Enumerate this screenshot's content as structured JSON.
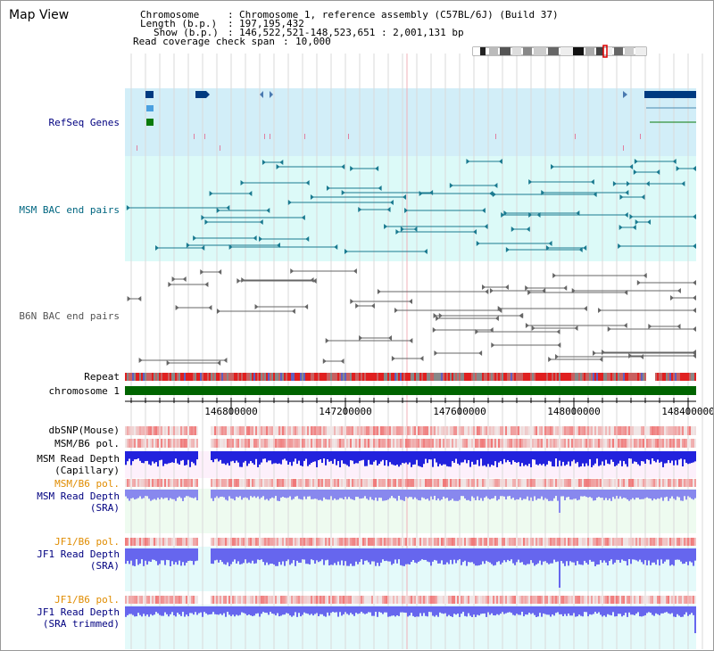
{
  "page": {
    "title": "Map View"
  },
  "header": {
    "chromosome_key": "Chromosome",
    "chromosome_value": "Chromosome 1, reference assembly (C57BL/6J) (Build 37)",
    "length_key": "Length (b.p.)",
    "length_value": "197,195,432",
    "show_key": "Show (b.p.)",
    "show_value": "146,522,521-148,523,651 : 2,001,131 bp",
    "coverage_key": "Read coverage check span",
    "coverage_value": "10,000"
  },
  "tracks": {
    "refseq": "RefSeq Genes",
    "msm_bac": "MSM BAC end pairs",
    "b6n_bac": "B6N BAC end pairs",
    "repeat": "Repeat",
    "chromosome": "chromosome 1",
    "dbsnp": "dbSNP(Mouse)",
    "msm_b6_pol_1": "MSM/B6 pol.",
    "msm_depth_cap_1": "MSM Read Depth",
    "msm_depth_cap_2": "(Capillary)",
    "msm_b6_pol_2": "MSM/B6 pol.",
    "msm_depth_sra_1": "MSM Read Depth",
    "msm_depth_sra_2": "(SRA)",
    "jf1_b6_pol_1": "JF1/B6 pol.",
    "jf1_depth_sra_1": "JF1 Read Depth",
    "jf1_depth_sra_2": "(SRA)",
    "jf1_b6_pol_2": "JF1/B6 pol.",
    "jf1_depth_trim_1": "JF1 Read Depth",
    "jf1_depth_trim_2": "(SRA trimmed)"
  },
  "axis": {
    "ticks": [
      "146800000",
      "147200000",
      "147600000",
      "148000000",
      "148400000"
    ]
  },
  "colors": {
    "refseq_bg": "#d2eef8",
    "msm_bg": "#dcfaf8",
    "depth_msm_cap": "#2222dd",
    "depth_msm_sra": "#8888ee",
    "depth_jf1": "#6666ee",
    "chromosome_bar": "#006400",
    "label_navy": "#000080",
    "label_orange": "#e08c00",
    "label_teal": "#006680"
  }
}
